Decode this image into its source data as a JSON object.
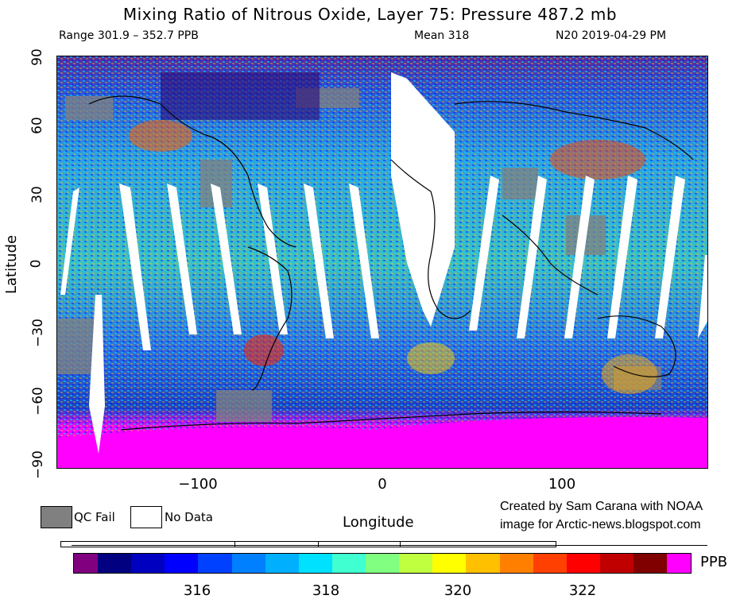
{
  "title": "Mixing Ratio of Nitrous Oxide, Layer 75: Pressure 487.2 mb",
  "header": {
    "range": "Range 301.9 – 352.7 PPB",
    "mean": "Mean 318",
    "product": "N20 2019-04-29 PM"
  },
  "axes": {
    "ylabel": "Latitude",
    "xlabel": "Longitude",
    "yticks": [
      "90",
      "60",
      "30",
      "0",
      "−30",
      "−60",
      "−90"
    ],
    "xticks": [
      "−100",
      "0",
      "100"
    ]
  },
  "legend": {
    "qc_fail": "QC Fail",
    "no_data": "No Data",
    "qc_color": "#808080",
    "nodata_color": "#ffffff"
  },
  "credit": {
    "line1": "Created by Sam Carana with NOAA",
    "line2": "image for Arctic-news.blogspot.com"
  },
  "colorbar": {
    "unit": "PPB",
    "ticks": [
      "316",
      "318",
      "320",
      "322"
    ],
    "low_color": "#800080",
    "high_color": "#ff00ff",
    "colors": [
      "#000080",
      "#0000c0",
      "#0000ff",
      "#0040ff",
      "#0080ff",
      "#00b0ff",
      "#00e0ff",
      "#40ffd0",
      "#80ff80",
      "#c0ff40",
      "#ffff00",
      "#ffc000",
      "#ff8000",
      "#ff4000",
      "#ff0000",
      "#c00000",
      "#800000"
    ]
  }
}
